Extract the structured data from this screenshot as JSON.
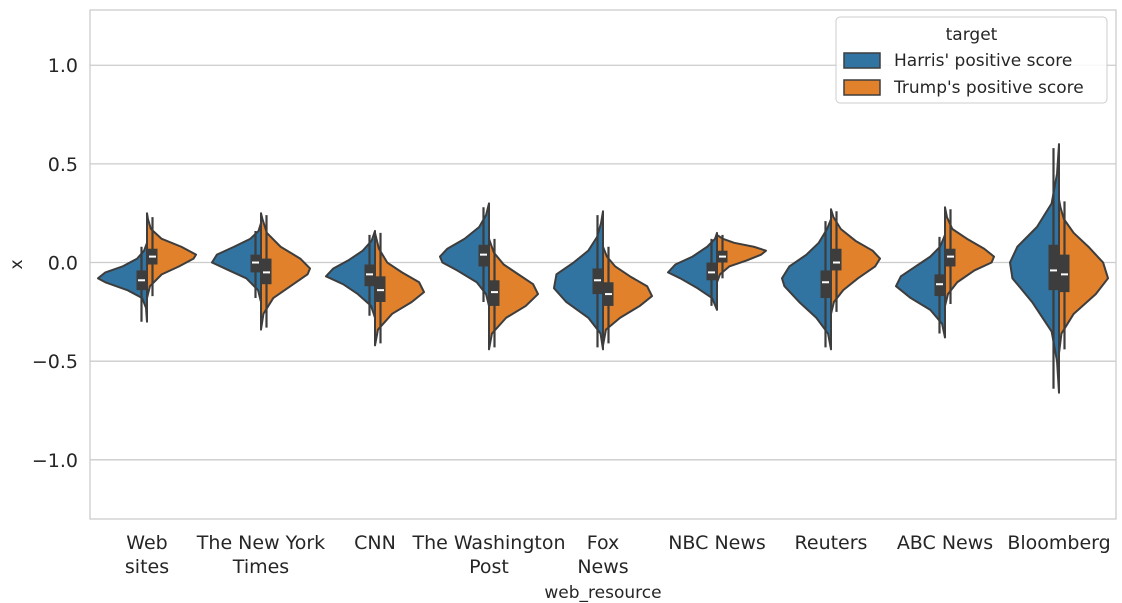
{
  "chart_data": {
    "type": "violin",
    "split": true,
    "xlabel": "web_resource",
    "ylabel": "x",
    "ylim": [
      -1.3,
      1.28
    ],
    "yticks": [
      {
        "value": 1.0,
        "label": "1.0"
      },
      {
        "value": 0.5,
        "label": "0.5"
      },
      {
        "value": 0.0,
        "label": "0.0"
      },
      {
        "value": -0.5,
        "label": "−0.5"
      },
      {
        "value": -1.0,
        "label": "−1.0"
      }
    ],
    "grid": true,
    "legend": {
      "title": "target",
      "placement": "top-right",
      "entries": [
        {
          "name": "Harris' positive score",
          "color": "#3274a1"
        },
        {
          "name": "Trump's positive score",
          "color": "#e1812c"
        }
      ]
    },
    "categories": [
      {
        "lines": [
          "Web",
          "sites"
        ]
      },
      {
        "lines": [
          "The New York",
          "Times"
        ]
      },
      {
        "lines": [
          "CNN"
        ]
      },
      {
        "lines": [
          "The Washington",
          "Post"
        ]
      },
      {
        "lines": [
          "Fox",
          "News"
        ]
      },
      {
        "lines": [
          "NBC News"
        ]
      },
      {
        "lines": [
          "Reuters"
        ]
      },
      {
        "lines": [
          "ABC News"
        ]
      },
      {
        "lines": [
          "Bloomberg"
        ]
      }
    ],
    "series": [
      {
        "name": "Harris' positive score",
        "color": "#3274a1",
        "stats": [
          {
            "min": -0.3,
            "q1": -0.14,
            "median": -0.09,
            "q3": -0.04,
            "max": 0.08
          },
          {
            "min": -0.18,
            "q1": -0.05,
            "median": 0.0,
            "q3": 0.04,
            "max": 0.16
          },
          {
            "min": -0.27,
            "q1": -0.12,
            "median": -0.06,
            "q3": -0.01,
            "max": 0.14
          },
          {
            "min": -0.2,
            "q1": -0.02,
            "median": 0.04,
            "q3": 0.09,
            "max": 0.28
          },
          {
            "min": -0.43,
            "q1": -0.16,
            "median": -0.09,
            "q3": -0.03,
            "max": 0.24
          },
          {
            "min": -0.22,
            "q1": -0.09,
            "median": -0.05,
            "q3": 0.0,
            "max": 0.12
          },
          {
            "min": -0.43,
            "q1": -0.18,
            "median": -0.1,
            "q3": -0.04,
            "max": 0.21
          },
          {
            "min": -0.36,
            "q1": -0.17,
            "median": -0.11,
            "q3": -0.06,
            "max": 0.13
          },
          {
            "min": -0.64,
            "q1": -0.14,
            "median": -0.04,
            "q3": 0.09,
            "max": 0.58
          }
        ],
        "profiles": [
          [
            [
              -0.3,
              0
            ],
            [
              -0.23,
              0.02
            ],
            [
              -0.18,
              0.1
            ],
            [
              -0.14,
              0.4
            ],
            [
              -0.1,
              0.85
            ],
            [
              -0.08,
              1.0
            ],
            [
              -0.05,
              0.85
            ],
            [
              -0.02,
              0.5
            ],
            [
              0.02,
              0.2
            ],
            [
              0.06,
              0.06
            ],
            [
              0.1,
              0
            ]
          ],
          [
            [
              -0.2,
              0
            ],
            [
              -0.14,
              0.06
            ],
            [
              -0.08,
              0.3
            ],
            [
              -0.04,
              0.65
            ],
            [
              0.0,
              1.0
            ],
            [
              0.04,
              0.9
            ],
            [
              0.08,
              0.55
            ],
            [
              0.12,
              0.22
            ],
            [
              0.16,
              0.05
            ],
            [
              0.2,
              0
            ]
          ],
          [
            [
              -0.28,
              0
            ],
            [
              -0.22,
              0.08
            ],
            [
              -0.16,
              0.35
            ],
            [
              -0.11,
              0.65
            ],
            [
              -0.07,
              1.0
            ],
            [
              -0.03,
              0.85
            ],
            [
              0.01,
              0.55
            ],
            [
              0.06,
              0.25
            ],
            [
              0.11,
              0.07
            ],
            [
              0.16,
              0
            ]
          ],
          [
            [
              -0.22,
              0
            ],
            [
              -0.16,
              0.06
            ],
            [
              -0.1,
              0.25
            ],
            [
              -0.04,
              0.65
            ],
            [
              0.0,
              0.95
            ],
            [
              0.03,
              1.0
            ],
            [
              0.07,
              0.85
            ],
            [
              0.12,
              0.5
            ],
            [
              0.18,
              0.2
            ],
            [
              0.24,
              0.06
            ],
            [
              0.3,
              0
            ]
          ],
          [
            [
              -0.44,
              0
            ],
            [
              -0.36,
              0.05
            ],
            [
              -0.28,
              0.3
            ],
            [
              -0.2,
              0.75
            ],
            [
              -0.13,
              1.0
            ],
            [
              -0.06,
              0.95
            ],
            [
              0.0,
              0.6
            ],
            [
              0.06,
              0.3
            ],
            [
              0.13,
              0.12
            ],
            [
              0.2,
              0.04
            ],
            [
              0.26,
              0
            ]
          ],
          [
            [
              -0.24,
              0
            ],
            [
              -0.18,
              0.1
            ],
            [
              -0.13,
              0.4
            ],
            [
              -0.08,
              0.75
            ],
            [
              -0.05,
              1.0
            ],
            [
              -0.01,
              0.85
            ],
            [
              0.03,
              0.5
            ],
            [
              0.08,
              0.2
            ],
            [
              0.12,
              0.04
            ],
            [
              0.15,
              0
            ]
          ],
          [
            [
              -0.44,
              0
            ],
            [
              -0.36,
              0.06
            ],
            [
              -0.28,
              0.3
            ],
            [
              -0.2,
              0.65
            ],
            [
              -0.12,
              0.95
            ],
            [
              -0.08,
              1.0
            ],
            [
              -0.02,
              0.85
            ],
            [
              0.04,
              0.5
            ],
            [
              0.1,
              0.25
            ],
            [
              0.17,
              0.08
            ],
            [
              0.22,
              0
            ]
          ],
          [
            [
              -0.38,
              0
            ],
            [
              -0.31,
              0.06
            ],
            [
              -0.24,
              0.3
            ],
            [
              -0.18,
              0.7
            ],
            [
              -0.12,
              1.0
            ],
            [
              -0.07,
              0.9
            ],
            [
              -0.02,
              0.6
            ],
            [
              0.03,
              0.3
            ],
            [
              0.08,
              0.1
            ],
            [
              0.14,
              0
            ]
          ],
          [
            [
              -0.66,
              0
            ],
            [
              -0.5,
              0.04
            ],
            [
              -0.35,
              0.15
            ],
            [
              -0.2,
              0.55
            ],
            [
              -0.08,
              0.95
            ],
            [
              0.0,
              1.0
            ],
            [
              0.08,
              0.85
            ],
            [
              0.18,
              0.45
            ],
            [
              0.3,
              0.15
            ],
            [
              0.45,
              0.04
            ],
            [
              0.6,
              0
            ]
          ]
        ]
      },
      {
        "name": "Trump's positive score",
        "color": "#e1812c",
        "stats": [
          {
            "min": -0.17,
            "q1": -0.01,
            "median": 0.03,
            "q3": 0.07,
            "max": 0.23
          },
          {
            "min": -0.33,
            "q1": -0.11,
            "median": -0.05,
            "q3": 0.02,
            "max": 0.24
          },
          {
            "min": -0.41,
            "q1": -0.2,
            "median": -0.14,
            "q3": -0.07,
            "max": 0.15
          },
          {
            "min": -0.43,
            "q1": -0.22,
            "median": -0.15,
            "q3": -0.09,
            "max": 0.12
          },
          {
            "min": -0.41,
            "q1": -0.22,
            "median": -0.16,
            "q3": -0.1,
            "max": 0.08
          },
          {
            "min": -0.08,
            "q1": 0.0,
            "median": 0.03,
            "q3": 0.06,
            "max": 0.14
          },
          {
            "min": -0.25,
            "q1": -0.04,
            "median": 0.0,
            "q3": 0.07,
            "max": 0.26
          },
          {
            "min": -0.21,
            "q1": -0.02,
            "median": 0.03,
            "q3": 0.07,
            "max": 0.27
          },
          {
            "min": -0.44,
            "q1": -0.15,
            "median": -0.06,
            "q3": 0.04,
            "max": 0.31
          }
        ],
        "profiles": [
          [
            [
              -0.18,
              0
            ],
            [
              -0.12,
              0.06
            ],
            [
              -0.06,
              0.3
            ],
            [
              -0.02,
              0.65
            ],
            [
              0.02,
              0.95
            ],
            [
              0.04,
              1.0
            ],
            [
              0.08,
              0.7
            ],
            [
              0.12,
              0.3
            ],
            [
              0.17,
              0.08
            ],
            [
              0.22,
              0.02
            ],
            [
              0.25,
              0
            ]
          ],
          [
            [
              -0.34,
              0
            ],
            [
              -0.26,
              0.05
            ],
            [
              -0.18,
              0.25
            ],
            [
              -0.12,
              0.6
            ],
            [
              -0.06,
              0.95
            ],
            [
              -0.03,
              1.0
            ],
            [
              0.02,
              0.8
            ],
            [
              0.08,
              0.4
            ],
            [
              0.15,
              0.12
            ],
            [
              0.22,
              0.03
            ],
            [
              0.25,
              0
            ]
          ],
          [
            [
              -0.42,
              0
            ],
            [
              -0.34,
              0.06
            ],
            [
              -0.26,
              0.35
            ],
            [
              -0.2,
              0.75
            ],
            [
              -0.15,
              1.0
            ],
            [
              -0.1,
              0.9
            ],
            [
              -0.05,
              0.55
            ],
            [
              0.0,
              0.25
            ],
            [
              0.07,
              0.08
            ],
            [
              0.15,
              0
            ]
          ],
          [
            [
              -0.44,
              0
            ],
            [
              -0.36,
              0.06
            ],
            [
              -0.28,
              0.35
            ],
            [
              -0.22,
              0.75
            ],
            [
              -0.16,
              1.0
            ],
            [
              -0.11,
              0.9
            ],
            [
              -0.06,
              0.6
            ],
            [
              -0.01,
              0.3
            ],
            [
              0.05,
              0.1
            ],
            [
              0.12,
              0
            ]
          ],
          [
            [
              -0.42,
              0
            ],
            [
              -0.34,
              0.06
            ],
            [
              -0.28,
              0.35
            ],
            [
              -0.22,
              0.75
            ],
            [
              -0.17,
              1.0
            ],
            [
              -0.12,
              0.9
            ],
            [
              -0.07,
              0.55
            ],
            [
              -0.02,
              0.25
            ],
            [
              0.03,
              0.08
            ],
            [
              0.08,
              0
            ]
          ],
          [
            [
              -0.1,
              0
            ],
            [
              -0.06,
              0.06
            ],
            [
              -0.02,
              0.25
            ],
            [
              0.01,
              0.6
            ],
            [
              0.04,
              0.9
            ],
            [
              0.06,
              1.0
            ],
            [
              0.08,
              0.75
            ],
            [
              0.1,
              0.35
            ],
            [
              0.12,
              0.12
            ],
            [
              0.14,
              0
            ]
          ],
          [
            [
              -0.26,
              0
            ],
            [
              -0.2,
              0.06
            ],
            [
              -0.14,
              0.25
            ],
            [
              -0.08,
              0.55
            ],
            [
              -0.02,
              0.9
            ],
            [
              0.02,
              1.0
            ],
            [
              0.06,
              0.85
            ],
            [
              0.11,
              0.5
            ],
            [
              0.17,
              0.2
            ],
            [
              0.23,
              0.05
            ],
            [
              0.27,
              0
            ]
          ],
          [
            [
              -0.22,
              0
            ],
            [
              -0.16,
              0.06
            ],
            [
              -0.1,
              0.25
            ],
            [
              -0.04,
              0.6
            ],
            [
              0.0,
              0.95
            ],
            [
              0.03,
              1.0
            ],
            [
              0.07,
              0.8
            ],
            [
              0.12,
              0.45
            ],
            [
              0.17,
              0.15
            ],
            [
              0.23,
              0.04
            ],
            [
              0.28,
              0
            ]
          ],
          [
            [
              -0.46,
              0
            ],
            [
              -0.36,
              0.05
            ],
            [
              -0.26,
              0.3
            ],
            [
              -0.16,
              0.75
            ],
            [
              -0.08,
              1.0
            ],
            [
              0.0,
              0.9
            ],
            [
              0.08,
              0.6
            ],
            [
              0.15,
              0.3
            ],
            [
              0.22,
              0.1
            ],
            [
              0.28,
              0.03
            ],
            [
              0.32,
              0
            ]
          ]
        ]
      }
    ]
  }
}
